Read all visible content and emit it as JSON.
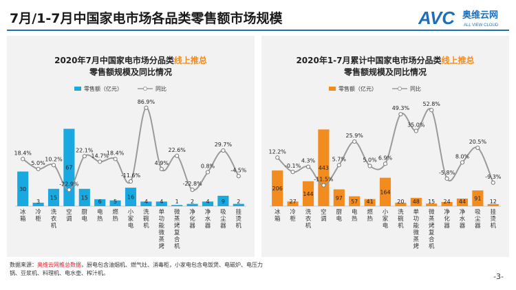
{
  "header": {
    "title": "7月/1-7月中国家电市场各品类零售额市场规模",
    "logo_text": "AVC",
    "logo_cn": "奥维云网",
    "logo_en": "ALL VIEW CLOUD"
  },
  "colors": {
    "brand_blue": "#1f6fb8",
    "left_bar": "#19a9e0",
    "right_bar": "#f28c1e",
    "line": "#9a9a9a",
    "highlight_orange": "#f28c1e",
    "footnote_red": "#e0202a"
  },
  "chart_data": [
    {
      "type": "bar",
      "title": "2020年7月中国家电市场分品类线上推总",
      "title_highlight": "线上推总",
      "subtitle": "零售额规模及同比情况",
      "legend": {
        "bar": "零售额（亿元）",
        "line": "同比",
        "position": "top"
      },
      "categories": [
        "冰箱",
        "冷柜",
        "洗衣机",
        "空调",
        "厨电",
        "电热",
        "燃热",
        "小家电",
        "洗碗机",
        "单功能微蒸烤",
        "微蒸烤复合机",
        "净化器",
        "净水器",
        "吸尘器",
        "挂烫机"
      ],
      "series": [
        {
          "kind": "bar",
          "values": [
            30,
            3,
            15,
            67,
            15,
            6,
            5,
            16,
            4,
            4,
            1,
            2,
            4,
            9,
            2
          ]
        },
        {
          "kind": "line",
          "values": [
            18.4,
            5.0,
            10.2,
            -22.9,
            22.1,
            14.7,
            18.4,
            -11.6,
            86.9,
            4.9,
            22.6,
            -22.8,
            0.8,
            29.7,
            -4.5
          ],
          "labels": [
            "18.4%",
            "5.0%",
            "10.2%",
            "-22.9%",
            "22.1%",
            "14.7%",
            "18.4%",
            "-11.6%",
            "86.9%",
            "4.9%",
            "22.6%",
            "-22.8%",
            "0.8%",
            "29.7%",
            "-4.5%"
          ]
        }
      ],
      "bar_labels": [
        "30",
        "3",
        "15",
        "67",
        "15",
        "6",
        "5",
        "16",
        "4",
        "4",
        "1",
        "2",
        "4",
        "9",
        "2"
      ],
      "bar_range": [
        0,
        75
      ],
      "line_range": [
        -30,
        95
      ]
    },
    {
      "type": "bar",
      "title": "2020年1-7月累计中国家电市场分品类线上推总",
      "title_highlight": "线上推总",
      "subtitle": "零售额规模及同比情况",
      "legend": {
        "bar": "零售额（亿元）",
        "line": "同比",
        "position": "top"
      },
      "categories": [
        "冰箱",
        "冷柜",
        "洗衣机",
        "空调",
        "厨电",
        "电热",
        "燃热",
        "小家电",
        "洗碗机",
        "单功能微蒸烤",
        "微蒸烤复合机",
        "净化器",
        "净水器",
        "吸尘器",
        "挂烫机"
      ],
      "series": [
        {
          "kind": "bar",
          "values": [
            206,
            27,
            144,
            443,
            97,
            57,
            41,
            164,
            20,
            48,
            15,
            24,
            44,
            91,
            12
          ]
        },
        {
          "kind": "line",
          "values": [
            12.2,
            -0.1,
            4.3,
            -11.5,
            5.7,
            25.9,
            5.0,
            6.9,
            49.3,
            35.0,
            52.8,
            -5.8,
            8.0,
            20.5,
            -9.3
          ],
          "labels": [
            "12.2%",
            "-0.1%",
            "4.3%",
            "-11.5%",
            "5.7%",
            "25.9%",
            "5.0%",
            "6.9%",
            "49.3%",
            "35.0%",
            "52.8%",
            "-5.8%",
            "8.0%",
            "20.5%",
            "-9.3%"
          ]
        }
      ],
      "bar_labels": [
        "206",
        "27",
        "144",
        "443",
        "97",
        "57",
        "41",
        "164",
        "20",
        "48",
        "15",
        "24",
        "44",
        "91",
        "12"
      ],
      "bar_range": [
        0,
        500
      ],
      "line_range": [
        -20,
        60
      ]
    }
  ],
  "footnote": {
    "prefix": "数据来源：",
    "source": "奥维云网推总数据",
    "rest": "，厨电包含油烟机、燃气灶、消毒柜，小家电包含电饭煲、电磁炉、电压力锅、豆浆机、料理机、电水壶、榨汁机。"
  },
  "page_number": "-3-"
}
